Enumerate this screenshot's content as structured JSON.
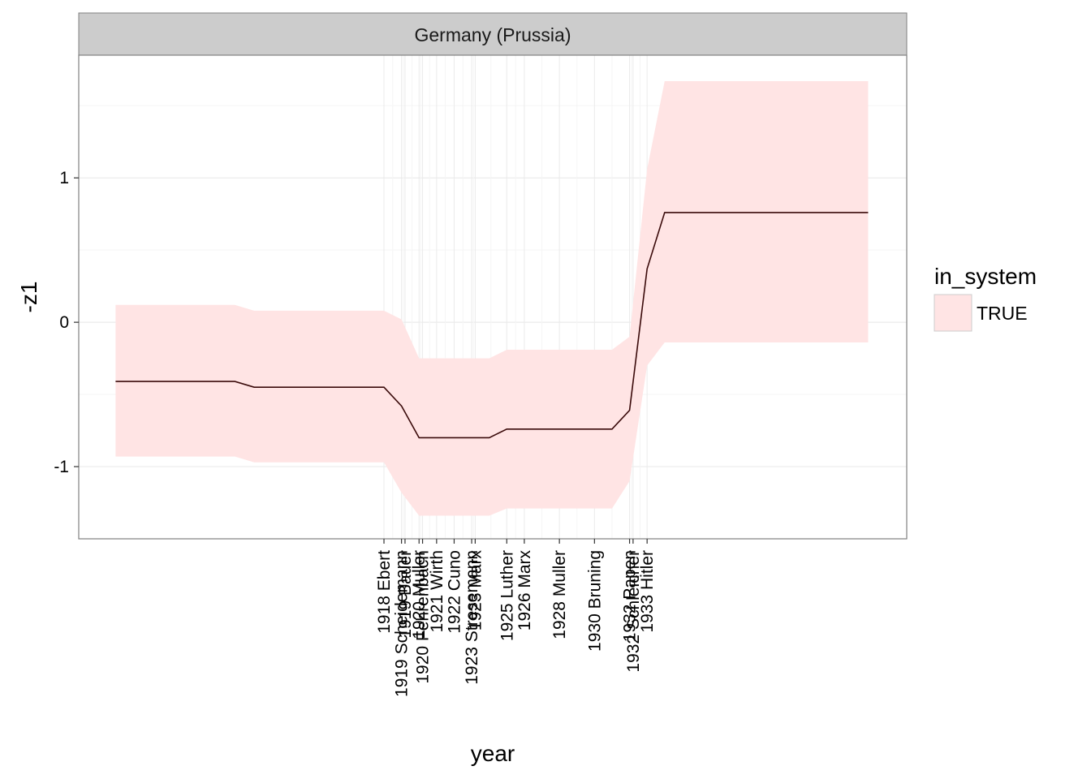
{
  "chart_data": {
    "type": "line",
    "facet_label": "Germany (Prussia)",
    "xlabel": "year",
    "ylabel": "-z1",
    "ylim": [
      -1.5,
      1.85
    ],
    "xlim": [
      1900.6,
      1947.8
    ],
    "y_ticks": [
      -1,
      0,
      1
    ],
    "y_tick_labels": [
      "-1",
      "0",
      "1"
    ],
    "x_ticks": [
      {
        "value": 1918,
        "label": "1918 Ebert"
      },
      {
        "value": 1919,
        "label": "1919 Scheidemann"
      },
      {
        "value": 1919.2,
        "label": "1919 Bauer"
      },
      {
        "value": 1920,
        "label": "1920 Muller"
      },
      {
        "value": 1920.2,
        "label": "1920 Fehrenbach"
      },
      {
        "value": 1921,
        "label": "1921 Wirth"
      },
      {
        "value": 1922,
        "label": "1922 Cuno"
      },
      {
        "value": 1923,
        "label": "1923 Stresemann"
      },
      {
        "value": 1923.2,
        "label": "1923 Marx"
      },
      {
        "value": 1925,
        "label": "1925 Luther"
      },
      {
        "value": 1926,
        "label": "1926 Marx"
      },
      {
        "value": 1928,
        "label": "1928 Muller"
      },
      {
        "value": 1930,
        "label": "1930 Bruning"
      },
      {
        "value": 1932,
        "label": "1932 Papen"
      },
      {
        "value": 1932.2,
        "label": "1932 Schleicher"
      },
      {
        "value": 1933,
        "label": "1933 Hitler"
      }
    ],
    "series": [
      {
        "x": [
          1902.7,
          1909.5,
          1910.6,
          1917.0,
          1918.0,
          1919.0,
          1920.0,
          1921.0,
          1922.0,
          1923.0,
          1924.0,
          1925.0,
          1926.0,
          1928.0,
          1930.0,
          1931.0,
          1932.0,
          1933.0,
          1934.0,
          1945.6
        ],
        "y": [
          -0.41,
          -0.41,
          -0.45,
          -0.45,
          -0.45,
          -0.58,
          -0.8,
          -0.8,
          -0.8,
          -0.8,
          -0.8,
          -0.74,
          -0.74,
          -0.74,
          -0.74,
          -0.74,
          -0.61,
          0.37,
          0.76,
          0.76
        ],
        "ymin": [
          -0.93,
          -0.93,
          -0.97,
          -0.97,
          -0.97,
          -1.18,
          -1.34,
          -1.34,
          -1.34,
          -1.34,
          -1.34,
          -1.29,
          -1.29,
          -1.29,
          -1.29,
          -1.29,
          -1.1,
          -0.3,
          -0.14,
          -0.14
        ],
        "ymax": [
          0.12,
          0.12,
          0.08,
          0.08,
          0.08,
          0.02,
          -0.25,
          -0.25,
          -0.25,
          -0.25,
          -0.25,
          -0.19,
          -0.19,
          -0.19,
          -0.19,
          -0.19,
          -0.1,
          1.06,
          1.67,
          1.67
        ]
      }
    ],
    "legend": {
      "title": "in_system",
      "entries": [
        {
          "label": "TRUE",
          "fill": "#ffe4e4"
        }
      ],
      "position": "right"
    },
    "colors": {
      "ribbon": "#ffe4e4",
      "line": "#3a0a0a",
      "strip_bg": "#cccccc",
      "grid": "#ebebeb",
      "panel_border": "#808080"
    },
    "grid": true
  }
}
